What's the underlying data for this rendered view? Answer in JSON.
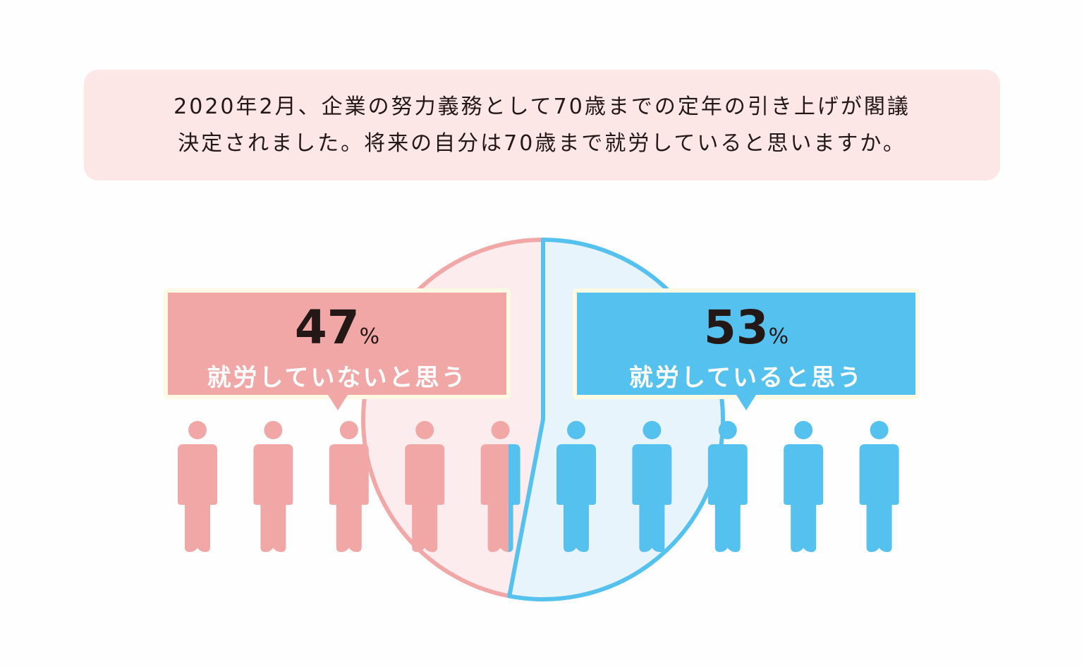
{
  "question": {
    "line1": "2020年2月、企業の努力義務として70歳までの定年の引き上げが閣議",
    "line2": "決定されました。将来の自分は70歳まで就労していると思いますか。"
  },
  "chart_data": {
    "type": "pie",
    "title": "将来の自分は70歳まで就労していると思いますか。",
    "slices": [
      {
        "label": "就労していないと思う",
        "value": 47,
        "unit": "%",
        "color": "#f2a7a7",
        "fill": "#fcecee"
      },
      {
        "label": "就労していると思う",
        "value": 53,
        "unit": "%",
        "color": "#55c1ef",
        "fill": "#e8f4fc"
      }
    ],
    "pictogram": {
      "total": 10,
      "per_icon_percent": 10
    }
  }
}
